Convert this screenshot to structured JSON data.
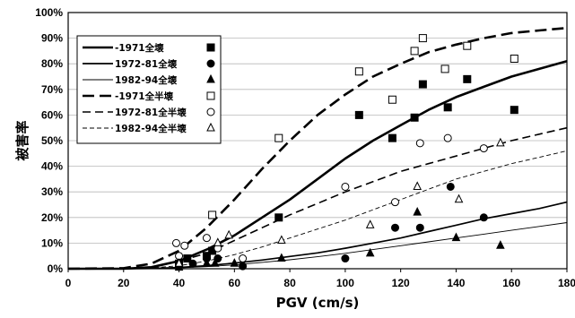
{
  "chart_data": {
    "type": "scatter",
    "xlabel": "PGV (cm/s)",
    "ylabel": "被害率",
    "xlim": [
      0,
      180
    ],
    "ylim": [
      0,
      1
    ],
    "x_ticks": [
      "0",
      "20",
      "40",
      "60",
      "80",
      "100",
      "120",
      "140",
      "160",
      "180"
    ],
    "y_ticks": [
      "0%",
      "10%",
      "20%",
      "30%",
      "40%",
      "50%",
      "60%",
      "70%",
      "80%",
      "90%",
      "100%"
    ],
    "grid": "horizontal",
    "legend_position": "top-left",
    "series": [
      {
        "name": "-1971全壊",
        "kind": "curve",
        "style": "solid-thick",
        "x": [
          0,
          20,
          30,
          40,
          50,
          60,
          70,
          80,
          90,
          100,
          110,
          120,
          130,
          140,
          150,
          160,
          170,
          180
        ],
        "y": [
          0,
          0.0,
          0.006,
          0.03,
          0.075,
          0.13,
          0.2,
          0.27,
          0.35,
          0.43,
          0.5,
          0.56,
          0.62,
          0.67,
          0.71,
          0.75,
          0.78,
          0.81
        ]
      },
      {
        "name": "1972-81全壊",
        "kind": "curve",
        "style": "solid-medium",
        "x": [
          0,
          20,
          30,
          40,
          50,
          60,
          70,
          80,
          90,
          100,
          110,
          120,
          130,
          140,
          150,
          160,
          170,
          180
        ],
        "y": [
          0,
          0.0,
          0.001,
          0.005,
          0.012,
          0.022,
          0.034,
          0.048,
          0.062,
          0.08,
          0.1,
          0.12,
          0.145,
          0.17,
          0.195,
          0.215,
          0.235,
          0.26
        ]
      },
      {
        "name": "1982-94全壊",
        "kind": "curve",
        "style": "solid-thin",
        "x": [
          0,
          20,
          30,
          40,
          50,
          60,
          70,
          80,
          90,
          100,
          110,
          120,
          130,
          140,
          150,
          160,
          170,
          180
        ],
        "y": [
          0,
          0.0,
          0.001,
          0.003,
          0.008,
          0.015,
          0.025,
          0.035,
          0.047,
          0.06,
          0.075,
          0.09,
          0.105,
          0.12,
          0.135,
          0.15,
          0.165,
          0.18
        ]
      },
      {
        "name": "-1971全半壊",
        "kind": "curve",
        "style": "dash-thick",
        "x": [
          0,
          20,
          30,
          40,
          50,
          60,
          70,
          80,
          90,
          100,
          110,
          120,
          130,
          140,
          150,
          160,
          170,
          180
        ],
        "y": [
          0,
          0.002,
          0.02,
          0.07,
          0.16,
          0.27,
          0.39,
          0.5,
          0.6,
          0.68,
          0.75,
          0.8,
          0.845,
          0.875,
          0.9,
          0.92,
          0.93,
          0.94
        ]
      },
      {
        "name": "1972-81全半壊",
        "kind": "curve",
        "style": "dash-medium",
        "x": [
          0,
          20,
          30,
          40,
          50,
          60,
          70,
          80,
          90,
          100,
          110,
          120,
          130,
          140,
          150,
          160,
          170,
          180
        ],
        "y": [
          0,
          0.0,
          0.007,
          0.03,
          0.06,
          0.11,
          0.16,
          0.21,
          0.255,
          0.3,
          0.34,
          0.38,
          0.41,
          0.44,
          0.47,
          0.5,
          0.525,
          0.55
        ]
      },
      {
        "name": "1982-94全半壊",
        "kind": "curve",
        "style": "dash-thin",
        "x": [
          0,
          20,
          30,
          40,
          50,
          60,
          70,
          80,
          90,
          100,
          110,
          120,
          130,
          140,
          150,
          160,
          170,
          180
        ],
        "y": [
          0,
          0.0,
          0.003,
          0.012,
          0.03,
          0.055,
          0.085,
          0.12,
          0.155,
          0.19,
          0.23,
          0.27,
          0.31,
          0.35,
          0.38,
          0.41,
          0.435,
          0.46
        ]
      },
      {
        "name": "-1971全壊",
        "kind": "points",
        "marker": "square-filled",
        "x": [
          40,
          43,
          50,
          52,
          76,
          105,
          117,
          125,
          128,
          137,
          144,
          161
        ],
        "y": [
          0.02,
          0.04,
          0.05,
          0.07,
          0.2,
          0.6,
          0.51,
          0.59,
          0.72,
          0.63,
          0.74,
          0.62
        ]
      },
      {
        "name": "1972-81全壊",
        "kind": "points",
        "marker": "circle-filled",
        "x": [
          40,
          45,
          50,
          54,
          63,
          100,
          118,
          127,
          138,
          150
        ],
        "y": [
          0.015,
          0.02,
          0.04,
          0.04,
          0.01,
          0.04,
          0.16,
          0.16,
          0.32,
          0.2
        ]
      },
      {
        "name": "1982-94全壊",
        "kind": "points",
        "marker": "triangle-filled",
        "x": [
          40,
          50,
          53,
          60,
          77,
          109,
          126,
          140,
          156
        ],
        "y": [
          0.005,
          0.02,
          0.02,
          0.02,
          0.04,
          0.06,
          0.22,
          0.12,
          0.09
        ]
      },
      {
        "name": "-1971全半壊",
        "kind": "points",
        "marker": "square-open",
        "x": [
          52,
          76,
          105,
          117,
          125,
          128,
          136,
          144,
          161
        ],
        "y": [
          0.21,
          0.51,
          0.77,
          0.66,
          0.85,
          0.9,
          0.78,
          0.87,
          0.82
        ]
      },
      {
        "name": "1972-81全半壊",
        "kind": "points",
        "marker": "circle-open",
        "x": [
          39,
          40,
          42,
          50,
          54,
          63,
          100,
          118,
          127,
          137,
          150
        ],
        "y": [
          0.1,
          0.05,
          0.09,
          0.12,
          0.08,
          0.04,
          0.32,
          0.26,
          0.49,
          0.51,
          0.47
        ]
      },
      {
        "name": "1982-94全半壊",
        "kind": "points",
        "marker": "triangle-open",
        "x": [
          40,
          54,
          58,
          77,
          109,
          126,
          141,
          156
        ],
        "y": [
          0.02,
          0.1,
          0.13,
          0.11,
          0.17,
          0.32,
          0.27,
          0.49
        ]
      }
    ],
    "legend": [
      {
        "label": "-1971全壊",
        "line": "solid-thick",
        "marker": "square-filled"
      },
      {
        "label": "1972-81全壊",
        "line": "solid-medium",
        "marker": "circle-filled"
      },
      {
        "label": "1982-94全壊",
        "line": "solid-thin",
        "marker": "triangle-filled"
      },
      {
        "label": "-1971全半壊",
        "line": "dash-thick",
        "marker": "square-open"
      },
      {
        "label": "1972-81全半壊",
        "line": "dash-medium",
        "marker": "circle-open"
      },
      {
        "label": "1982-94全半壊",
        "line": "dash-thin",
        "marker": "triangle-open"
      }
    ]
  }
}
